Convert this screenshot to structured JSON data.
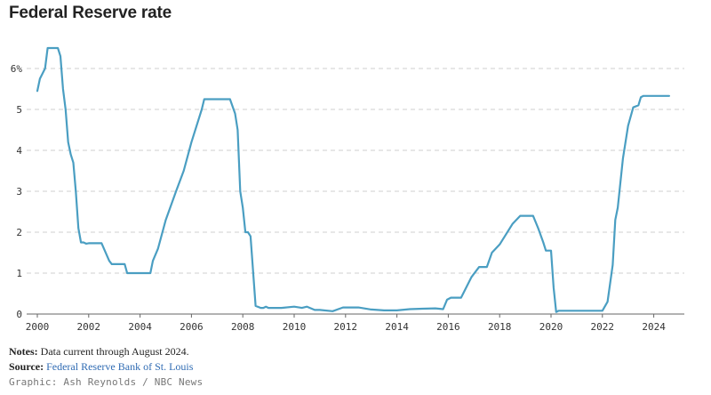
{
  "chart_data": {
    "type": "line",
    "title": "Federal Reserve rate",
    "xlabel": "",
    "ylabel": "",
    "x_ticks": [
      "2000",
      "2002",
      "2004",
      "2006",
      "2008",
      "2010",
      "2012",
      "2014",
      "2016",
      "2018",
      "2020",
      "2022",
      "2024"
    ],
    "y_ticks": [
      "0",
      "1",
      "2",
      "3",
      "4",
      "5",
      "6%"
    ],
    "xlim": [
      2000,
      2024.9
    ],
    "ylim": [
      0,
      6.6
    ],
    "grid": "horizontal dashed",
    "line_color": "#4a9ec2",
    "series": [
      {
        "name": "",
        "x": [
          2000.0,
          2000.1,
          2000.3,
          2000.4,
          2000.5,
          2000.6,
          2000.8,
          2000.9,
          2001.0,
          2001.1,
          2001.2,
          2001.3,
          2001.4,
          2001.5,
          2001.6,
          2001.7,
          2001.8,
          2001.9,
          2002.0,
          2002.5,
          2002.8,
          2002.9,
          2003.4,
          2003.5,
          2004.4,
          2004.5,
          2004.7,
          2005.0,
          2005.4,
          2005.7,
          2006.0,
          2006.4,
          2006.5,
          2007.5,
          2007.7,
          2007.8,
          2007.9,
          2008.0,
          2008.1,
          2008.2,
          2008.3,
          2008.5,
          2008.7,
          2008.8,
          2008.9,
          2009.0,
          2009.5,
          2010.0,
          2010.3,
          2010.5,
          2010.8,
          2011.0,
          2011.5,
          2011.9,
          2012.5,
          2013.0,
          2013.5,
          2014.0,
          2014.5,
          2015.0,
          2015.5,
          2015.8,
          2015.95,
          2016.1,
          2016.5,
          2016.9,
          2017.2,
          2017.5,
          2017.7,
          2018.0,
          2018.2,
          2018.5,
          2018.8,
          2019.0,
          2019.3,
          2019.5,
          2019.7,
          2019.8,
          2020.0,
          2020.1,
          2020.2,
          2020.3,
          2021.0,
          2021.5,
          2022.0,
          2022.2,
          2022.4,
          2022.5,
          2022.6,
          2022.7,
          2022.8,
          2023.0,
          2023.2,
          2023.4,
          2023.5,
          2023.6,
          2024.0,
          2024.6
        ],
        "values": [
          5.45,
          5.75,
          6.0,
          6.5,
          6.5,
          6.5,
          6.5,
          6.3,
          5.5,
          5.0,
          4.2,
          3.9,
          3.7,
          3.0,
          2.1,
          1.75,
          1.75,
          1.72,
          1.73,
          1.73,
          1.3,
          1.22,
          1.22,
          1.0,
          1.0,
          1.3,
          1.6,
          2.3,
          3.0,
          3.5,
          4.2,
          5.0,
          5.25,
          5.25,
          4.9,
          4.5,
          3.0,
          2.6,
          2.0,
          2.0,
          1.9,
          0.2,
          0.15,
          0.15,
          0.18,
          0.15,
          0.15,
          0.18,
          0.15,
          0.18,
          0.1,
          0.1,
          0.07,
          0.16,
          0.16,
          0.11,
          0.09,
          0.09,
          0.12,
          0.13,
          0.14,
          0.12,
          0.35,
          0.4,
          0.4,
          0.9,
          1.15,
          1.15,
          1.5,
          1.7,
          1.9,
          2.2,
          2.4,
          2.4,
          2.4,
          2.1,
          1.75,
          1.55,
          1.55,
          0.65,
          0.05,
          0.08,
          0.08,
          0.08,
          0.08,
          0.3,
          1.2,
          2.3,
          2.6,
          3.2,
          3.8,
          4.6,
          5.05,
          5.1,
          5.3,
          5.33,
          5.33,
          5.33
        ]
      }
    ]
  },
  "notes": {
    "label": "Notes:",
    "text": "Data current through August 2024."
  },
  "source": {
    "label": "Source:",
    "text": "Federal Reserve Bank of St. Louis"
  },
  "credit": "Graphic: Ash Reynolds / NBC News"
}
